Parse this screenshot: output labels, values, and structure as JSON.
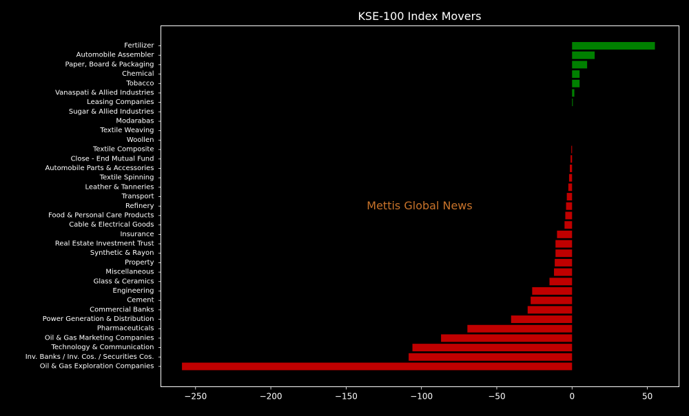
{
  "chart_data": {
    "type": "bar",
    "orientation": "horizontal",
    "title": "KSE-100 Index Movers",
    "xlabel": "",
    "ylabel": "",
    "xlim": [
      -273,
      71
    ],
    "xticks": [
      -250,
      -200,
      -150,
      -100,
      -50,
      0,
      50
    ],
    "xtick_labels": [
      "−250",
      "−200",
      "−150",
      "−100",
      "−50",
      "0",
      "50"
    ],
    "grid": false,
    "legend": "none",
    "watermark": "Mettis Global News",
    "colors": {
      "positive": "#008000",
      "negative": "#c00000",
      "background": "#000000",
      "text": "#ffffff",
      "watermark": "#c8732a"
    },
    "categories": [
      "Fertilizer",
      "Automobile Assembler",
      "Paper, Board & Packaging",
      "Chemical",
      "Tobacco",
      "Vanaspati & Allied Industries",
      "Leasing Companies",
      "Sugar & Allied Industries",
      "Modarabas",
      "Textile Weaving",
      "Woollen",
      "Textile Composite",
      "Close - End Mutual Fund",
      "Automobile Parts & Accessories",
      "Textile Spinning",
      "Leather & Tanneries",
      "Transport",
      "Refinery",
      "Food & Personal Care Products",
      "Cable & Electrical Goods",
      "Insurance",
      "Real Estate Investment Trust",
      "Synthetic & Rayon",
      "Property",
      "Miscellaneous",
      "Glass & Ceramics",
      "Engineering",
      "Cement",
      "Commercial Banks",
      "Power Generation & Distribution",
      "Pharmaceuticals",
      "Oil & Gas Marketing Companies",
      "Technology & Communication",
      "Inv. Banks / Inv. Cos. / Securities Cos.",
      "Oil & Gas Exploration Companies"
    ],
    "values": [
      55,
      15,
      10,
      5,
      5,
      1.5,
      0.5,
      0,
      0,
      0,
      0,
      -0.5,
      -1,
      -1.5,
      -2,
      -2.5,
      -3.5,
      -4,
      -4.5,
      -5,
      -10,
      -11,
      -11,
      -11.5,
      -12,
      -15,
      -26.5,
      -27.5,
      -29.5,
      -40.5,
      -69.5,
      -87,
      -106,
      -108.5,
      -259
    ]
  }
}
